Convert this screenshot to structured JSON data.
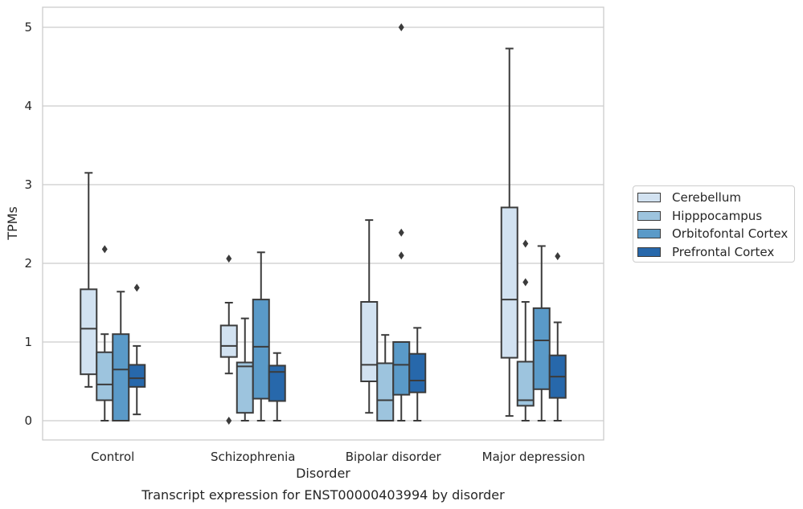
{
  "chart_data": {
    "type": "box",
    "title": "Transcript expression for ENST00000403994 by disorder",
    "xlabel": "Disorder",
    "ylabel": "TPMs",
    "ylim": [
      -0.25,
      5.25
    ],
    "yticks": [
      "0",
      "1",
      "2",
      "3",
      "4",
      "5"
    ],
    "grid": "horizontal",
    "legend_position": "right",
    "categories": [
      "Control",
      "Schizophrenia",
      "Bipolar disorder",
      "Major depression"
    ],
    "series": [
      {
        "name": "Cerebellum",
        "color": "#d2e2f1",
        "boxes": [
          {
            "whislo": 0.43,
            "q1": 0.59,
            "med": 1.17,
            "q3": 1.67,
            "whishi": 3.15,
            "fliers": []
          },
          {
            "whislo": 0.6,
            "q1": 0.81,
            "med": 0.95,
            "q3": 1.21,
            "whishi": 1.5,
            "fliers": [
              2.06,
              0.0
            ]
          },
          {
            "whislo": 0.1,
            "q1": 0.5,
            "med": 0.71,
            "q3": 1.51,
            "whishi": 2.55,
            "fliers": []
          },
          {
            "whislo": 0.06,
            "q1": 0.8,
            "med": 1.54,
            "q3": 2.71,
            "whishi": 4.73,
            "fliers": []
          }
        ]
      },
      {
        "name": "Hipppocampus",
        "color": "#9dc4de",
        "boxes": [
          {
            "whislo": 0.0,
            "q1": 0.26,
            "med": 0.46,
            "q3": 0.87,
            "whishi": 1.1,
            "fliers": [
              2.18
            ]
          },
          {
            "whislo": 0.0,
            "q1": 0.1,
            "med": 0.69,
            "q3": 0.74,
            "whishi": 1.3,
            "fliers": []
          },
          {
            "whislo": 0.0,
            "q1": 0.0,
            "med": 0.26,
            "q3": 0.73,
            "whishi": 1.09,
            "fliers": []
          },
          {
            "whislo": 0.0,
            "q1": 0.19,
            "med": 0.26,
            "q3": 0.75,
            "whishi": 1.51,
            "fliers": [
              2.25,
              1.76
            ]
          }
        ]
      },
      {
        "name": "Orbitofontal Cortex",
        "color": "#5a9ac8",
        "boxes": [
          {
            "whislo": 0.0,
            "q1": 0.0,
            "med": 0.65,
            "q3": 1.1,
            "whishi": 1.64,
            "fliers": []
          },
          {
            "whislo": 0.0,
            "q1": 0.28,
            "med": 0.94,
            "q3": 1.54,
            "whishi": 2.14,
            "fliers": []
          },
          {
            "whislo": 0.0,
            "q1": 0.33,
            "med": 0.71,
            "q3": 1.0,
            "whishi": 1.0,
            "fliers": [
              5.0,
              2.39,
              2.1
            ]
          },
          {
            "whislo": 0.0,
            "q1": 0.4,
            "med": 1.02,
            "q3": 1.43,
            "whishi": 2.22,
            "fliers": []
          }
        ]
      },
      {
        "name": "Prefrontal Cortex",
        "color": "#2768ab",
        "boxes": [
          {
            "whislo": 0.08,
            "q1": 0.43,
            "med": 0.54,
            "q3": 0.71,
            "whishi": 0.95,
            "fliers": [
              1.69
            ]
          },
          {
            "whislo": 0.0,
            "q1": 0.25,
            "med": 0.62,
            "q3": 0.7,
            "whishi": 0.86,
            "fliers": []
          },
          {
            "whislo": 0.0,
            "q1": 0.36,
            "med": 0.51,
            "q3": 0.85,
            "whishi": 1.18,
            "fliers": []
          },
          {
            "whislo": 0.0,
            "q1": 0.29,
            "med": 0.56,
            "q3": 0.83,
            "whishi": 1.25,
            "fliers": [
              2.09
            ]
          }
        ]
      }
    ]
  }
}
